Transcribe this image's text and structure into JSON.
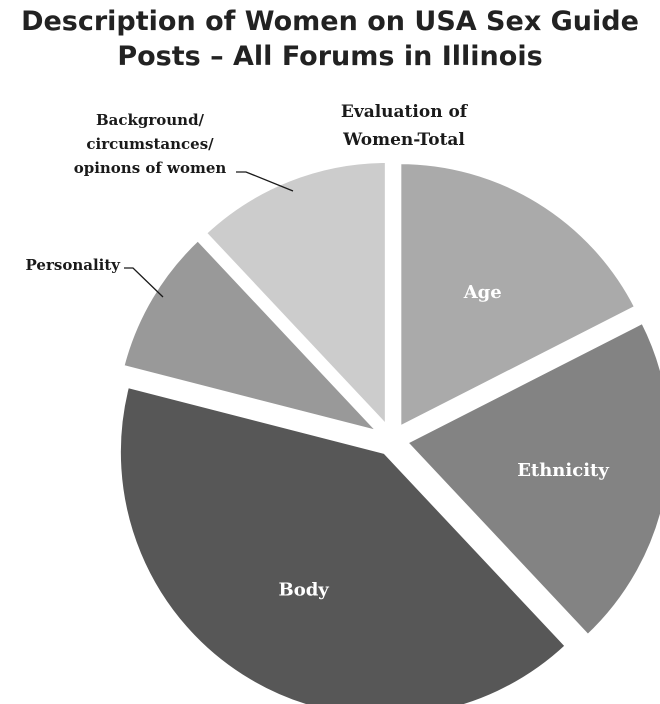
{
  "title_lines": [
    "Description of Women on USA Sex Guide",
    "Posts – All Forums in Illinois"
  ],
  "chart_data": {
    "type": "pie",
    "title": "Description of Women on USA Sex Guide Posts – All Forums in Illinois",
    "subtitle_lines": [
      "Evaluation of",
      "Women-Total"
    ],
    "start_angle_deg": 0,
    "direction": "clockwise",
    "exploded": true,
    "slices": [
      {
        "label": "Age",
        "label_lines": [
          "Age"
        ],
        "value": 17.5,
        "color": "#aaaaaa",
        "label_placement": "inside"
      },
      {
        "label": "Ethnicity",
        "label_lines": [
          "Ethnicity"
        ],
        "value": 20.5,
        "color": "#838383",
        "label_placement": "inside"
      },
      {
        "label": "Body",
        "label_lines": [
          "Body"
        ],
        "value": 41,
        "color": "#575757",
        "label_placement": "inside"
      },
      {
        "label": "Personality",
        "label_lines": [
          "Personality"
        ],
        "value": 9,
        "color": "#999999",
        "label_placement": "outside"
      },
      {
        "label": "Background/ circumstances/ opinons of women",
        "label_lines": [
          "Background/",
          "circumstances/",
          "opinons of women"
        ],
        "value": 12,
        "color": "#cccccc",
        "label_placement": "outside"
      }
    ]
  }
}
